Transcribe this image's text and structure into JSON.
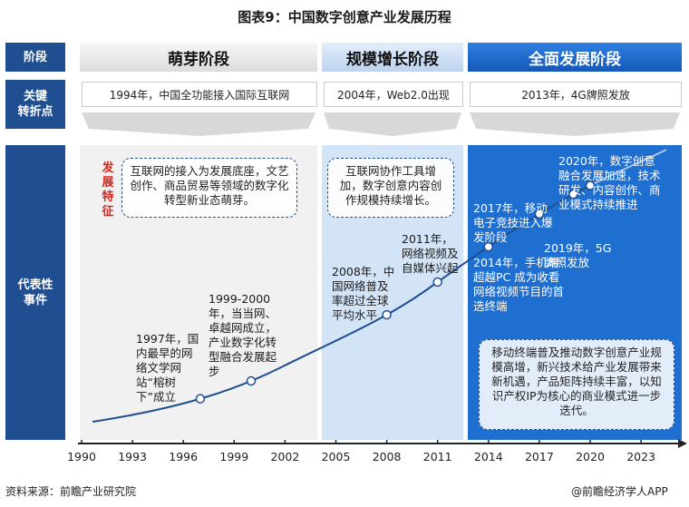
{
  "title": "图表9：中国数字创意产业发展历程",
  "row_labels": {
    "stage": "阶段",
    "turning": "关键\n转折点",
    "events": "代表性\n事件"
  },
  "phases": [
    {
      "label": "萌芽阶段",
      "turning_point": "1994年，中国全功能接入国际互联网",
      "color": "#eeeeee"
    },
    {
      "label": "规模增长阶段",
      "turning_point": "2004年，Web2.0出现",
      "color": "#cfe0f5"
    },
    {
      "label": "全面发展阶段",
      "turning_point": "2013年，4G牌照发放",
      "color": "#1f6fd1"
    }
  ],
  "feature_label": "发展特征",
  "features": [
    "互联网的接入为发展底座，文艺创作、商品贸易等领域的数字化转型新业态萌芽。",
    "互联网协作工具增加，数字创意内容创作规模持续增长。",
    "移动终端普及推动数字创意产业规模高增，新兴技术给产业发展带来新机遇，产品矩阵持续丰富，以知识产权IP为核心的商业模式进一步迭代。"
  ],
  "events": [
    {
      "text": "1997年，国内最早的网络文学网站“榕树下”成立",
      "year": 1997
    },
    {
      "text": "1999-2000年，当当网、卓越网成立，产业数字化转型融合发展起步",
      "year": 2000
    },
    {
      "text": "2008年，中国网络普及率超过全球平均水平",
      "year": 2008
    },
    {
      "text": "2011年，网络视频及自媒体兴起",
      "year": 2011
    },
    {
      "text": "2014年，手机端超越PC 成为收看网络视频节目的首选终端",
      "year": 2014
    },
    {
      "text": "2017年，移动电子竞技进入爆发阶段",
      "year": 2017
    },
    {
      "text": "2019年，5G牌照发放",
      "year": 2019
    },
    {
      "text": "2020年，数字创意融合发展加速，技术研发、内容创作、商业模式持续推进",
      "year": 2020
    }
  ],
  "x_axis": {
    "ticks": [
      "1990",
      "1993",
      "1996",
      "1999",
      "2002",
      "2005",
      "2008",
      "2011",
      "2014",
      "2017",
      "2020",
      "2023"
    ]
  },
  "source": "资料来源：前瞻产业研究院",
  "brand": "@前瞻经济学人APP",
  "colors": {
    "navy": "#1f4e91",
    "accent": "#1f6fd1",
    "feature_red": "#d9261c"
  }
}
